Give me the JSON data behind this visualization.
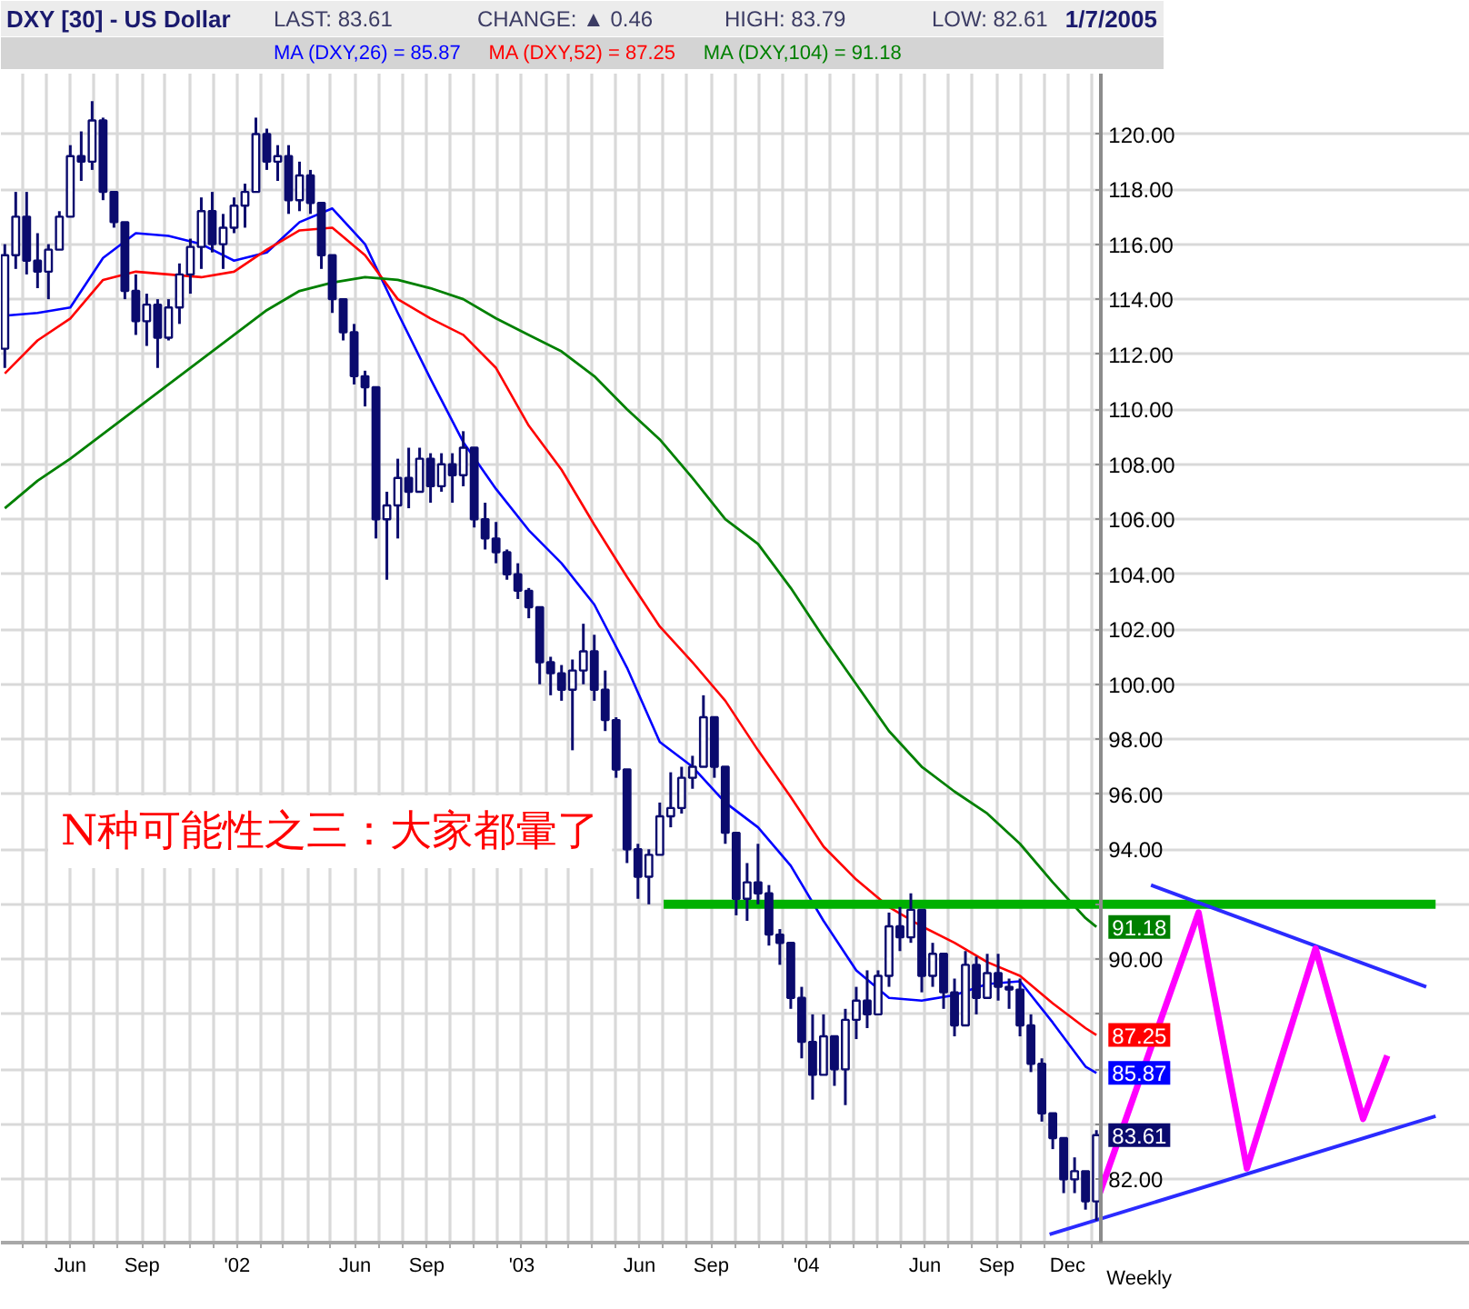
{
  "chart_data": {
    "type": "candlestick",
    "title": "DXY [30] - US Dollar",
    "annotations": [
      "LAST: 83.61",
      "CHANGE: ▲ 0.46",
      "HIGH: 83.79",
      "LOW: 82.61",
      "1/7/2005",
      "Weekly",
      "N种可能性之三：大家都暈了"
    ],
    "x": [
      "2001-03-09",
      "2001-03-23",
      "2001-04-06",
      "2001-04-20",
      "2001-05-04",
      "2001-05-18",
      "2001-06-01",
      "2001-06-15",
      "2001-06-29",
      "2001-07-13",
      "2001-07-27",
      "2001-08-10",
      "2001-08-24",
      "2001-09-07",
      "2001-09-21",
      "2001-10-05",
      "2001-10-19",
      "2001-11-02",
      "2001-11-16",
      "2001-11-30",
      "2001-12-14",
      "2001-12-28",
      "2002-01-11",
      "2002-01-25",
      "2002-02-08",
      "2002-02-22",
      "2002-03-08",
      "2002-03-22",
      "2002-04-05",
      "2002-04-19",
      "2002-05-03",
      "2002-05-17",
      "2002-05-31",
      "2002-06-14",
      "2002-06-28",
      "2002-07-12",
      "2002-07-26",
      "2002-08-09",
      "2002-08-23",
      "2002-09-06",
      "2002-09-20",
      "2002-10-04",
      "2002-10-18",
      "2002-11-01",
      "2002-11-15",
      "2002-11-29",
      "2002-12-13",
      "2002-12-27",
      "2003-01-10",
      "2003-01-24",
      "2003-02-07",
      "2003-02-21",
      "2003-03-07",
      "2003-03-21",
      "2003-04-04",
      "2003-04-18",
      "2003-05-02",
      "2003-05-16",
      "2003-05-30",
      "2003-06-13",
      "2003-06-27",
      "2003-07-11",
      "2003-07-25",
      "2003-08-08",
      "2003-08-22",
      "2003-09-05",
      "2003-09-19",
      "2003-10-03",
      "2003-10-17",
      "2003-10-31",
      "2003-11-14",
      "2003-11-28",
      "2003-12-12",
      "2003-12-26",
      "2004-01-09",
      "2004-01-23",
      "2004-02-06",
      "2004-02-20",
      "2004-03-05",
      "2004-03-19",
      "2004-04-02",
      "2004-04-16",
      "2004-04-30",
      "2004-05-14",
      "2004-05-28",
      "2004-06-11",
      "2004-06-25",
      "2004-07-09",
      "2004-07-23",
      "2004-08-06",
      "2004-08-20",
      "2004-09-03",
      "2004-09-17",
      "2004-10-01",
      "2004-10-15",
      "2004-10-29",
      "2004-11-12",
      "2004-11-26",
      "2004-12-10",
      "2004-12-24",
      "2005-01-07"
    ],
    "ohlc": [
      [
        112.2,
        116.0,
        111.5,
        115.6
      ],
      [
        115.6,
        117.9,
        115.1,
        117.0
      ],
      [
        117.0,
        117.9,
        114.9,
        115.4
      ],
      [
        115.4,
        116.4,
        114.4,
        115.0
      ],
      [
        115.0,
        116.0,
        114.0,
        115.8
      ],
      [
        115.8,
        117.2,
        115.8,
        117.0
      ],
      [
        117.0,
        119.6,
        117.0,
        119.2
      ],
      [
        119.2,
        120.1,
        118.3,
        119.0
      ],
      [
        119.0,
        121.2,
        118.7,
        120.5
      ],
      [
        120.5,
        120.6,
        117.6,
        117.9
      ],
      [
        117.9,
        117.9,
        116.6,
        116.8
      ],
      [
        116.8,
        116.8,
        114.0,
        114.3
      ],
      [
        114.3,
        114.9,
        112.7,
        113.2
      ],
      [
        113.2,
        114.2,
        112.3,
        113.8
      ],
      [
        113.8,
        114.0,
        111.5,
        112.6
      ],
      [
        112.6,
        114.0,
        112.5,
        113.7
      ],
      [
        113.7,
        115.3,
        113.1,
        114.9
      ],
      [
        114.9,
        116.2,
        114.2,
        115.9
      ],
      [
        115.9,
        117.7,
        115.1,
        117.2
      ],
      [
        117.2,
        117.9,
        115.7,
        116.0
      ],
      [
        116.0,
        117.1,
        115.1,
        116.6
      ],
      [
        116.6,
        117.7,
        116.4,
        117.4
      ],
      [
        117.4,
        118.2,
        116.6,
        117.9
      ],
      [
        117.9,
        120.6,
        117.9,
        120.0
      ],
      [
        120.0,
        120.2,
        118.7,
        119.0
      ],
      [
        119.0,
        119.6,
        118.3,
        119.2
      ],
      [
        119.2,
        119.6,
        117.1,
        117.6
      ],
      [
        117.6,
        119.0,
        117.2,
        118.5
      ],
      [
        118.5,
        118.7,
        117.1,
        117.5
      ],
      [
        117.5,
        117.5,
        115.1,
        115.6
      ],
      [
        115.6,
        115.6,
        113.5,
        114.0
      ],
      [
        114.0,
        114.0,
        112.5,
        112.8
      ],
      [
        112.8,
        113.1,
        110.9,
        111.2
      ],
      [
        111.2,
        111.4,
        110.1,
        110.8
      ],
      [
        110.8,
        110.8,
        105.3,
        106.0
      ],
      [
        106.0,
        107.0,
        103.8,
        106.5
      ],
      [
        106.5,
        108.2,
        105.3,
        107.5
      ],
      [
        107.5,
        108.6,
        106.4,
        107.0
      ],
      [
        107.0,
        108.6,
        107.0,
        108.2
      ],
      [
        108.2,
        108.4,
        106.6,
        107.2
      ],
      [
        107.2,
        108.4,
        107.0,
        108.0
      ],
      [
        108.0,
        108.4,
        106.6,
        107.6
      ],
      [
        107.6,
        109.2,
        107.2,
        108.6
      ],
      [
        108.6,
        108.6,
        105.7,
        106.0
      ],
      [
        106.0,
        106.6,
        104.9,
        105.3
      ],
      [
        105.3,
        105.9,
        104.4,
        104.8
      ],
      [
        104.8,
        104.9,
        103.8,
        104.0
      ],
      [
        104.0,
        104.4,
        103.1,
        103.4
      ],
      [
        103.4,
        103.5,
        102.4,
        102.8
      ],
      [
        102.8,
        102.8,
        100.0,
        100.8
      ],
      [
        100.8,
        101.0,
        99.6,
        100.4
      ],
      [
        100.4,
        100.7,
        99.4,
        99.8
      ],
      [
        99.8,
        100.9,
        97.6,
        100.5
      ],
      [
        100.5,
        102.2,
        100.0,
        101.2
      ],
      [
        101.2,
        101.8,
        99.4,
        99.8
      ],
      [
        99.8,
        100.5,
        98.3,
        98.7
      ],
      [
        98.7,
        98.8,
        96.6,
        96.9
      ],
      [
        96.9,
        96.9,
        93.5,
        94.0
      ],
      [
        94.0,
        94.2,
        92.2,
        93.0
      ],
      [
        93.0,
        94.0,
        92.0,
        93.8
      ],
      [
        93.8,
        95.7,
        93.8,
        95.2
      ],
      [
        95.2,
        96.8,
        94.8,
        95.5
      ],
      [
        95.5,
        97.0,
        95.3,
        96.6
      ],
      [
        96.6,
        97.4,
        96.2,
        97.0
      ],
      [
        97.0,
        99.6,
        97.0,
        98.8
      ],
      [
        98.8,
        98.8,
        96.6,
        97.0
      ],
      [
        97.0,
        97.0,
        94.2,
        94.6
      ],
      [
        94.6,
        94.6,
        91.6,
        92.2
      ],
      [
        92.2,
        93.5,
        91.4,
        92.8
      ],
      [
        92.8,
        94.2,
        92.0,
        92.4
      ],
      [
        92.4,
        92.7,
        90.5,
        90.9
      ],
      [
        90.9,
        91.1,
        89.8,
        90.6
      ],
      [
        90.6,
        90.6,
        88.2,
        88.6
      ],
      [
        88.6,
        89.0,
        86.4,
        87.0
      ],
      [
        87.0,
        88.0,
        84.9,
        85.8
      ],
      [
        85.8,
        88.0,
        85.8,
        87.2
      ],
      [
        87.2,
        87.2,
        85.4,
        86.0
      ],
      [
        86.0,
        88.2,
        84.7,
        87.8
      ],
      [
        87.8,
        89.0,
        87.1,
        88.5
      ],
      [
        88.5,
        89.6,
        87.5,
        88.0
      ],
      [
        88.0,
        89.6,
        88.0,
        89.4
      ],
      [
        89.4,
        91.7,
        89.0,
        91.2
      ],
      [
        91.2,
        91.9,
        90.3,
        90.8
      ],
      [
        90.8,
        92.4,
        90.6,
        91.8
      ],
      [
        91.8,
        91.8,
        88.8,
        89.4
      ],
      [
        89.4,
        90.6,
        89.0,
        90.2
      ],
      [
        90.2,
        90.2,
        88.2,
        88.8
      ],
      [
        88.8,
        89.3,
        87.2,
        87.6
      ],
      [
        87.6,
        90.3,
        87.6,
        89.8
      ],
      [
        89.8,
        90.1,
        88.0,
        88.6
      ],
      [
        88.6,
        90.2,
        88.6,
        89.5
      ],
      [
        89.5,
        90.2,
        88.5,
        89.0
      ],
      [
        89.0,
        89.3,
        88.2,
        88.9
      ],
      [
        88.9,
        89.3,
        87.2,
        87.6
      ],
      [
        87.6,
        88.0,
        85.9,
        86.2
      ],
      [
        86.2,
        86.4,
        84.1,
        84.4
      ],
      [
        84.4,
        84.4,
        83.1,
        83.5
      ],
      [
        83.5,
        83.5,
        81.5,
        82.0
      ],
      [
        82.0,
        82.8,
        81.5,
        82.3
      ],
      [
        82.3,
        82.3,
        80.9,
        81.2
      ],
      [
        81.2,
        83.79,
        80.5,
        83.61
      ]
    ],
    "color": "#0b0b6e",
    "value_labels": [
      null,
      null,
      null,
      null,
      null,
      null,
      null,
      null,
      null,
      null,
      null,
      null,
      null,
      null,
      null,
      null,
      null,
      null,
      null,
      null,
      null,
      null,
      null,
      null,
      null,
      null,
      null,
      null,
      null,
      null,
      null,
      null,
      null,
      null,
      null,
      null,
      null,
      null,
      null,
      null,
      null,
      null,
      null,
      null,
      null,
      null,
      null,
      null,
      null,
      null,
      null,
      null,
      null,
      null,
      null,
      null,
      null,
      null,
      null,
      null,
      null,
      null,
      null,
      null,
      null,
      null,
      null,
      null,
      null,
      null,
      null,
      null,
      null,
      null,
      null,
      null,
      null,
      null,
      null,
      null,
      null,
      null,
      null,
      null,
      null,
      null,
      null,
      null,
      null,
      null,
      null,
      null,
      null,
      null,
      null,
      null,
      null,
      null,
      null,
      null,
      "83.61"
    ],
    "xlim": [
      "2001-03-04",
      "2006-05-01"
    ],
    "ylim": [
      79.7,
      122.2
    ],
    "xticks": [
      {
        "value": "2001-04",
        "label": null
      },
      {
        "value": "2001-05",
        "label": null
      },
      {
        "value": "2001-06",
        "label": "Jun"
      },
      {
        "value": "2001-07",
        "label": null
      },
      {
        "value": "2001-08",
        "label": null
      },
      {
        "value": "2001-09",
        "label": "Sep"
      },
      {
        "value": "2001-10",
        "label": null
      },
      {
        "value": "2001-11",
        "label": null
      },
      {
        "value": "2001-12",
        "label": null
      },
      {
        "value": "2002-01",
        "label": "'02"
      },
      {
        "value": "2002-02",
        "label": null
      },
      {
        "value": "2002-03",
        "label": null
      },
      {
        "value": "2002-04",
        "label": null
      },
      {
        "value": "2002-05",
        "label": null
      },
      {
        "value": "2002-06",
        "label": "Jun"
      },
      {
        "value": "2002-07",
        "label": null
      },
      {
        "value": "2002-08",
        "label": null
      },
      {
        "value": "2002-09",
        "label": "Sep"
      },
      {
        "value": "2002-10",
        "label": null
      },
      {
        "value": "2002-11",
        "label": null
      },
      {
        "value": "2002-12",
        "label": null
      },
      {
        "value": "2003-01",
        "label": "'03"
      },
      {
        "value": "2003-02",
        "label": null
      },
      {
        "value": "2003-03",
        "label": null
      },
      {
        "value": "2003-04",
        "label": null
      },
      {
        "value": "2003-05",
        "label": null
      },
      {
        "value": "2003-06",
        "label": "Jun"
      },
      {
        "value": "2003-07",
        "label": null
      },
      {
        "value": "2003-08",
        "label": null
      },
      {
        "value": "2003-09",
        "label": "Sep"
      },
      {
        "value": "2003-10",
        "label": null
      },
      {
        "value": "2003-11",
        "label": null
      },
      {
        "value": "2003-12",
        "label": null
      },
      {
        "value": "2004-01",
        "label": "'04"
      },
      {
        "value": "2004-02",
        "label": null
      },
      {
        "value": "2004-03",
        "label": null
      },
      {
        "value": "2004-04",
        "label": null
      },
      {
        "value": "2004-05",
        "label": null
      },
      {
        "value": "2004-06",
        "label": "Jun"
      },
      {
        "value": "2004-07",
        "label": null
      },
      {
        "value": "2004-08",
        "label": null
      },
      {
        "value": "2004-09",
        "label": "Sep"
      },
      {
        "value": "2004-10",
        "label": null
      },
      {
        "value": "2004-11",
        "label": null
      },
      {
        "value": "2004-12",
        "label": "Dec"
      },
      {
        "value": "2005-01",
        "label": null
      }
    ],
    "yticks": [
      {
        "value": 82,
        "label": "82.00"
      },
      {
        "value": 84,
        "label": null
      },
      {
        "value": 86,
        "label": null
      },
      {
        "value": 88,
        "label": null
      },
      {
        "value": 90,
        "label": "90.00"
      },
      {
        "value": 92,
        "label": null
      },
      {
        "value": 94,
        "label": "94.00"
      },
      {
        "value": 96,
        "label": "96.00"
      },
      {
        "value": 98,
        "label": "98.00"
      },
      {
        "value": 100,
        "label": "100.00"
      },
      {
        "value": 102,
        "label": "102.00"
      },
      {
        "value": 104,
        "label": "104.00"
      },
      {
        "value": 106,
        "label": "106.00"
      },
      {
        "value": 108,
        "label": "108.00"
      },
      {
        "value": 110,
        "label": "110.00"
      },
      {
        "value": 112,
        "label": "112.00"
      },
      {
        "value": 114,
        "label": "114.00"
      },
      {
        "value": 116,
        "label": "116.00"
      },
      {
        "value": 118,
        "label": "118.00"
      },
      {
        "value": 120,
        "label": "120.00"
      }
    ],
    "grid": true,
    "legend": "top",
    "series": [
      {
        "type": "line",
        "name": "MA (DXY,26) = 85.87",
        "color": "#0000ff",
        "x": [
          "2001-03-09",
          "2001-04-20",
          "2001-06-01",
          "2001-07-13",
          "2001-08-24",
          "2001-10-05",
          "2001-11-16",
          "2001-12-28",
          "2002-02-08",
          "2002-03-22",
          "2002-05-03",
          "2002-06-14",
          "2002-07-26",
          "2002-09-06",
          "2002-10-18",
          "2002-11-29",
          "2003-01-10",
          "2003-02-21",
          "2003-04-04",
          "2003-05-16",
          "2003-06-27",
          "2003-08-08",
          "2003-09-19",
          "2003-10-31",
          "2003-12-12",
          "2004-01-23",
          "2004-03-05",
          "2004-04-16",
          "2004-05-28",
          "2004-07-09",
          "2004-08-20",
          "2004-10-01",
          "2004-11-12",
          "2004-12-24",
          "2005-01-07"
        ],
        "values": [
          113.4,
          113.5,
          113.7,
          115.5,
          116.4,
          116.3,
          116.0,
          115.4,
          115.7,
          116.8,
          117.3,
          116.0,
          113.5,
          111.1,
          108.8,
          107.1,
          105.6,
          104.4,
          102.9,
          100.6,
          97.9,
          97.0,
          95.7,
          94.8,
          93.4,
          91.4,
          89.6,
          88.6,
          88.5,
          88.7,
          89.1,
          89.2,
          87.7,
          86.1,
          85.87
        ],
        "value_labels": [
          null,
          null,
          null,
          null,
          null,
          null,
          null,
          null,
          null,
          null,
          null,
          null,
          null,
          null,
          null,
          null,
          null,
          null,
          null,
          null,
          null,
          null,
          null,
          null,
          null,
          null,
          null,
          null,
          null,
          null,
          null,
          null,
          null,
          null,
          "85.87"
        ]
      },
      {
        "type": "line",
        "name": "MA (DXY,52) = 87.25",
        "color": "#ff0000",
        "x": [
          "2001-03-09",
          "2001-04-20",
          "2001-06-01",
          "2001-07-13",
          "2001-08-24",
          "2001-10-05",
          "2001-11-16",
          "2001-12-28",
          "2002-02-08",
          "2002-03-22",
          "2002-05-03",
          "2002-06-14",
          "2002-07-26",
          "2002-09-06",
          "2002-10-18",
          "2002-11-29",
          "2003-01-10",
          "2003-02-21",
          "2003-04-04",
          "2003-05-16",
          "2003-06-27",
          "2003-08-08",
          "2003-09-19",
          "2003-10-31",
          "2003-12-12",
          "2004-01-23",
          "2004-03-05",
          "2004-04-16",
          "2004-05-28",
          "2004-07-09",
          "2004-08-20",
          "2004-10-01",
          "2004-11-12",
          "2004-12-24",
          "2005-01-07"
        ],
        "values": [
          111.3,
          112.5,
          113.3,
          114.7,
          115.0,
          114.9,
          114.8,
          115.0,
          115.8,
          116.5,
          116.6,
          115.6,
          114.0,
          113.3,
          112.7,
          111.5,
          109.4,
          107.8,
          105.8,
          103.9,
          102.1,
          100.8,
          99.4,
          97.6,
          95.9,
          94.1,
          92.9,
          91.9,
          91.2,
          90.6,
          89.9,
          89.4,
          88.4,
          87.5,
          87.25
        ],
        "value_labels": [
          null,
          null,
          null,
          null,
          null,
          null,
          null,
          null,
          null,
          null,
          null,
          null,
          null,
          null,
          null,
          null,
          null,
          null,
          null,
          null,
          null,
          null,
          null,
          null,
          null,
          null,
          null,
          null,
          null,
          null,
          null,
          null,
          null,
          null,
          "87.25"
        ]
      },
      {
        "type": "line",
        "name": "MA (DXY,104) = 91.18",
        "color": "#008000",
        "x": [
          "2001-03-09",
          "2001-04-20",
          "2001-06-01",
          "2001-07-13",
          "2001-08-24",
          "2001-10-05",
          "2001-11-16",
          "2001-12-28",
          "2002-02-08",
          "2002-03-22",
          "2002-05-03",
          "2002-06-14",
          "2002-07-26",
          "2002-09-06",
          "2002-10-18",
          "2002-11-29",
          "2003-01-10",
          "2003-02-21",
          "2003-04-04",
          "2003-05-16",
          "2003-06-27",
          "2003-08-08",
          "2003-09-19",
          "2003-10-31",
          "2003-12-12",
          "2004-01-23",
          "2004-03-05",
          "2004-04-16",
          "2004-05-28",
          "2004-07-09",
          "2004-08-20",
          "2004-10-01",
          "2004-11-12",
          "2004-12-24",
          "2005-01-07"
        ],
        "values": [
          106.4,
          107.4,
          108.2,
          109.1,
          110.0,
          110.9,
          111.8,
          112.7,
          113.6,
          114.3,
          114.6,
          114.8,
          114.7,
          114.4,
          114.0,
          113.3,
          112.7,
          112.1,
          111.2,
          110.0,
          108.9,
          107.5,
          106.0,
          105.1,
          103.5,
          101.7,
          100.0,
          98.3,
          97.0,
          96.1,
          95.3,
          94.2,
          92.8,
          91.5,
          91.18
        ],
        "value_labels": [
          null,
          null,
          null,
          null,
          null,
          null,
          null,
          null,
          null,
          null,
          null,
          null,
          null,
          null,
          null,
          null,
          null,
          null,
          null,
          null,
          null,
          null,
          null,
          null,
          null,
          null,
          null,
          null,
          null,
          null,
          null,
          null,
          null,
          null,
          "91.18"
        ]
      },
      {
        "type": "line",
        "color": "#00b000",
        "x": [
          "2003-07-02",
          "2006-03-18"
        ],
        "values": [
          92.0,
          92.0
        ]
      },
      {
        "type": "line",
        "color": "#2b2bff",
        "x": [
          "2005-03-18",
          "2006-03-06"
        ],
        "values": [
          92.7,
          89.0
        ]
      },
      {
        "type": "line",
        "color": "#2b2bff",
        "x": [
          "2004-11-08",
          "2006-03-18"
        ],
        "values": [
          80.0,
          84.3
        ]
      },
      {
        "type": "line",
        "color": "#ff00ff",
        "x": [
          "2005-01-10",
          "2005-05-18",
          "2005-07-19",
          "2005-10-15",
          "2005-12-15",
          "2006-01-15"
        ],
        "values": [
          81.4,
          91.7,
          82.4,
          90.4,
          84.2,
          86.5
        ]
      }
    ]
  }
}
